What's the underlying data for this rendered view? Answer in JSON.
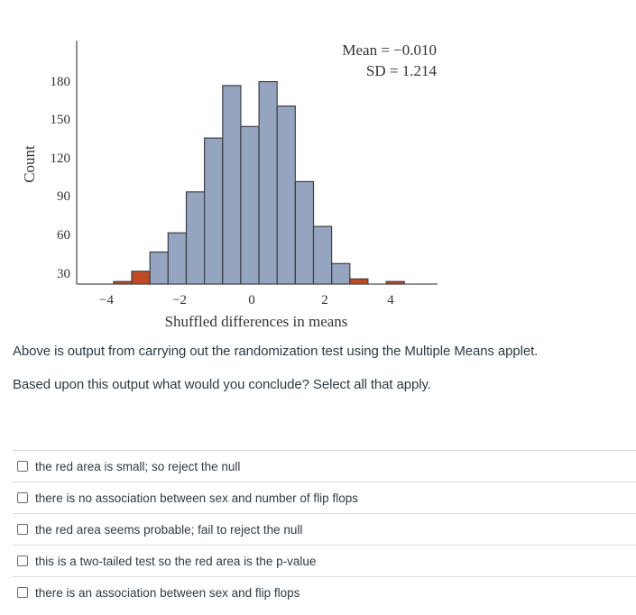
{
  "chart_data": {
    "type": "bar",
    "subtype": "histogram",
    "title": "",
    "xlabel": "Shuffled differences in means",
    "ylabel": "Count",
    "annotations": [
      "Mean = −0.010",
      "SD = 1.214"
    ],
    "x_ticks": [
      "−4",
      "−2",
      "0",
      "2",
      "4"
    ],
    "x_tick_values": [
      -4,
      -2,
      0,
      2,
      4
    ],
    "y_ticks": [
      "30",
      "60",
      "90",
      "120",
      "150",
      "180"
    ],
    "y_tick_values": [
      30,
      60,
      90,
      120,
      150,
      180
    ],
    "bin_width": 0.5,
    "bin_starts": [
      -3.8,
      -3.3,
      -2.8,
      -2.3,
      -1.8,
      -1.3,
      -0.8,
      -0.3,
      0.2,
      0.7,
      1.2,
      1.7,
      2.2,
      2.7,
      3.2,
      3.7
    ],
    "values": [
      2,
      10,
      25,
      40,
      72,
      114,
      155,
      123,
      158,
      139,
      80,
      45,
      16,
      4,
      0,
      2
    ],
    "highlighted": [
      true,
      true,
      false,
      false,
      false,
      false,
      false,
      false,
      false,
      false,
      false,
      false,
      false,
      true,
      false,
      true
    ],
    "colors": {
      "normal": "#96a5bf",
      "highlight": "#c04a24",
      "edge": "#3a3f47"
    },
    "grid": false,
    "xlim": [
      -4.5,
      5.1
    ],
    "ylim": [
      0,
      190
    ]
  },
  "chart": {
    "ylabel": "Count",
    "xlabel": "Shuffled differences in means",
    "mean_label": "Mean = −0.010",
    "sd_label": "SD = 1.214"
  },
  "question": {
    "line1": "Above is output from carrying out the randomization test using the Multiple Means applet.",
    "line2": "Based upon this output what would you conclude? Select all that apply."
  },
  "options": [
    {
      "label": "the red area is small; so reject the null",
      "checked": false
    },
    {
      "label": "there is no association between sex and number of flip flops",
      "checked": false
    },
    {
      "label": "the red area seems probable; fail to reject the null",
      "checked": false
    },
    {
      "label": "this is a two-tailed test so the red area is the p-value",
      "checked": false
    },
    {
      "label": "there is an association between sex and flip flops",
      "checked": false
    }
  ]
}
